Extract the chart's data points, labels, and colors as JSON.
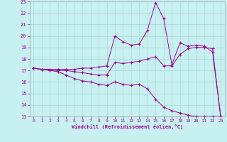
{
  "xlabel": "Windchill (Refroidissement éolien,°C)",
  "background_color": "#c8f0f0",
  "grid_color": "#a8d8d8",
  "line_color": "#990099",
  "x_hours": [
    0,
    1,
    2,
    3,
    4,
    5,
    6,
    7,
    8,
    9,
    10,
    11,
    12,
    13,
    14,
    15,
    16,
    17,
    18,
    19,
    20,
    21,
    22,
    23
  ],
  "line1_y": [
    17.2,
    17.1,
    17.0,
    16.9,
    16.6,
    16.3,
    16.1,
    16.0,
    15.8,
    15.7,
    16.0,
    15.8,
    15.7,
    15.8,
    15.4,
    14.5,
    13.8,
    13.5,
    13.3,
    13.1,
    13.0,
    13.0,
    13.0,
    13.0
  ],
  "line2_y": [
    17.2,
    17.1,
    17.0,
    17.0,
    17.0,
    16.9,
    16.8,
    16.7,
    16.6,
    16.6,
    17.7,
    17.6,
    17.7,
    17.8,
    18.0,
    18.2,
    17.4,
    17.4,
    18.4,
    18.9,
    19.0,
    19.0,
    18.9,
    13.0
  ],
  "line3_y": [
    17.2,
    17.1,
    17.1,
    17.1,
    17.1,
    17.1,
    17.2,
    17.2,
    17.3,
    17.4,
    20.0,
    19.5,
    19.2,
    19.3,
    20.5,
    22.9,
    21.5,
    17.5,
    19.4,
    19.1,
    19.2,
    19.1,
    18.6,
    13.0
  ],
  "ylim": [
    13,
    23
  ],
  "xlim": [
    -0.5,
    23.5
  ],
  "yticks": [
    13,
    14,
    15,
    16,
    17,
    18,
    19,
    20,
    21,
    22,
    23
  ],
  "xticks": [
    0,
    1,
    2,
    3,
    4,
    5,
    6,
    7,
    8,
    9,
    10,
    11,
    12,
    13,
    14,
    15,
    16,
    17,
    18,
    19,
    20,
    21,
    22,
    23
  ]
}
